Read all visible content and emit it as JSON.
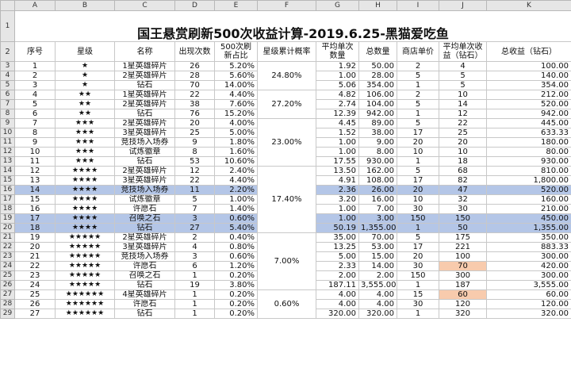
{
  "columns": [
    "A",
    "B",
    "C",
    "D",
    "E",
    "F",
    "G",
    "H",
    "I",
    "J",
    "K"
  ],
  "title": "国王悬赏刷新500次收益计算-2019.6.25-黑猫爱吃鱼",
  "headers": [
    "序号",
    "星级",
    "名称",
    "出现次数",
    "500次刷新占比",
    "星级累计概率",
    "平均单次数量",
    "总数量",
    "商店单价",
    "平均单次收益（钻石）",
    "总收益（钻石）"
  ],
  "rows": [
    {
      "rownum": "3",
      "seq": "1",
      "stars": "★",
      "name": "1星英雄碎片",
      "count": "26",
      "pct": "5.20%",
      "avg": "1.92",
      "total": "50.00",
      "price": "2",
      "avg_income": "4",
      "total_income": "100.00"
    },
    {
      "rownum": "4",
      "seq": "2",
      "stars": "★",
      "name": "2星英雄碎片",
      "count": "28",
      "pct": "5.60%",
      "avg": "1.00",
      "total": "28.00",
      "price": "5",
      "avg_income": "5",
      "total_income": "140.00"
    },
    {
      "rownum": "5",
      "seq": "3",
      "stars": "★",
      "name": "钻石",
      "count": "70",
      "pct": "14.00%",
      "avg": "5.06",
      "total": "354.00",
      "price": "1",
      "avg_income": "5",
      "total_income": "354.00"
    },
    {
      "rownum": "6",
      "seq": "4",
      "stars": "★★",
      "name": "1星英雄碎片",
      "count": "22",
      "pct": "4.40%",
      "avg": "4.82",
      "total": "106.00",
      "price": "2",
      "avg_income": "10",
      "total_income": "212.00"
    },
    {
      "rownum": "7",
      "seq": "5",
      "stars": "★★",
      "name": "2星英雄碎片",
      "count": "38",
      "pct": "7.60%",
      "avg": "2.74",
      "total": "104.00",
      "price": "5",
      "avg_income": "14",
      "total_income": "520.00"
    },
    {
      "rownum": "8",
      "seq": "6",
      "stars": "★★",
      "name": "钻石",
      "count": "76",
      "pct": "15.20%",
      "avg": "12.39",
      "total": "942.00",
      "price": "1",
      "avg_income": "12",
      "total_income": "942.00"
    },
    {
      "rownum": "9",
      "seq": "7",
      "stars": "★★★",
      "name": "2星英雄碎片",
      "count": "20",
      "pct": "4.00%",
      "avg": "4.45",
      "total": "89.00",
      "price": "5",
      "avg_income": "22",
      "total_income": "445.00"
    },
    {
      "rownum": "10",
      "seq": "8",
      "stars": "★★★",
      "name": "3星英雄碎片",
      "count": "25",
      "pct": "5.00%",
      "avg": "1.52",
      "total": "38.00",
      "price": "17",
      "avg_income": "25",
      "total_income": "633.33"
    },
    {
      "rownum": "11",
      "seq": "9",
      "stars": "★★★",
      "name": "竞技场入场券",
      "count": "9",
      "pct": "1.80%",
      "avg": "1.00",
      "total": "9.00",
      "price": "20",
      "avg_income": "20",
      "total_income": "180.00"
    },
    {
      "rownum": "12",
      "seq": "10",
      "stars": "★★★",
      "name": "试炼徽章",
      "count": "8",
      "pct": "1.60%",
      "avg": "1.00",
      "total": "8.00",
      "price": "10",
      "avg_income": "10",
      "total_income": "80.00"
    },
    {
      "rownum": "13",
      "seq": "11",
      "stars": "★★★",
      "name": "钻石",
      "count": "53",
      "pct": "10.60%",
      "avg": "17.55",
      "total": "930.00",
      "price": "1",
      "avg_income": "18",
      "total_income": "930.00"
    },
    {
      "rownum": "14",
      "seq": "12",
      "stars": "★★★★",
      "name": "2星英雄碎片",
      "count": "12",
      "pct": "2.40%",
      "avg": "13.50",
      "total": "162.00",
      "price": "5",
      "avg_income": "68",
      "total_income": "810.00"
    },
    {
      "rownum": "15",
      "seq": "13",
      "stars": "★★★★",
      "name": "3星英雄碎片",
      "count": "22",
      "pct": "4.40%",
      "avg": "4.91",
      "total": "108.00",
      "price": "17",
      "avg_income": "82",
      "total_income": "1,800.00"
    },
    {
      "rownum": "16",
      "seq": "14",
      "stars": "★★★★",
      "name": "竞技场入场券",
      "count": "11",
      "pct": "2.20%",
      "avg": "2.36",
      "total": "26.00",
      "price": "20",
      "avg_income": "47",
      "total_income": "520.00",
      "hl": true
    },
    {
      "rownum": "17",
      "seq": "15",
      "stars": "★★★★",
      "name": "试炼徽章",
      "count": "5",
      "pct": "1.00%",
      "avg": "3.20",
      "total": "16.00",
      "price": "10",
      "avg_income": "32",
      "total_income": "160.00"
    },
    {
      "rownum": "18",
      "seq": "16",
      "stars": "★★★★",
      "name": "许愿石",
      "count": "7",
      "pct": "1.40%",
      "avg": "1.00",
      "total": "7.00",
      "price": "30",
      "avg_income": "30",
      "total_income": "210.00"
    },
    {
      "rownum": "19",
      "seq": "17",
      "stars": "★★★★",
      "name": "召唤之石",
      "count": "3",
      "pct": "0.60%",
      "avg": "1.00",
      "total": "3.00",
      "price": "150",
      "avg_income": "150",
      "total_income": "450.00",
      "hl": true
    },
    {
      "rownum": "20",
      "seq": "18",
      "stars": "★★★★",
      "name": "钻石",
      "count": "27",
      "pct": "5.40%",
      "avg": "50.19",
      "total": "1,355.00",
      "price": "1",
      "avg_income": "50",
      "total_income": "1,355.00",
      "hl": true
    },
    {
      "rownum": "21",
      "seq": "19",
      "stars": "★★★★★",
      "name": "2星英雄碎片",
      "count": "2",
      "pct": "0.40%",
      "avg": "35.00",
      "total": "70.00",
      "price": "5",
      "avg_income": "175",
      "total_income": "350.00"
    },
    {
      "rownum": "22",
      "seq": "20",
      "stars": "★★★★★",
      "name": "3星英雄碎片",
      "count": "4",
      "pct": "0.80%",
      "avg": "13.25",
      "total": "53.00",
      "price": "17",
      "avg_income": "221",
      "total_income": "883.33"
    },
    {
      "rownum": "23",
      "seq": "21",
      "stars": "★★★★★",
      "name": "竞技场入场券",
      "count": "3",
      "pct": "0.60%",
      "avg": "5.00",
      "total": "15.00",
      "price": "20",
      "avg_income": "100",
      "total_income": "300.00"
    },
    {
      "rownum": "24",
      "seq": "22",
      "stars": "★★★★★",
      "name": "许愿石",
      "count": "6",
      "pct": "1.20%",
      "avg": "2.33",
      "total": "14.00",
      "price": "30",
      "avg_income": "70",
      "total_income": "420.00",
      "orange": true
    },
    {
      "rownum": "25",
      "seq": "23",
      "stars": "★★★★★",
      "name": "召唤之石",
      "count": "1",
      "pct": "0.20%",
      "avg": "2.00",
      "total": "2.00",
      "price": "150",
      "avg_income": "300",
      "total_income": "300.00"
    },
    {
      "rownum": "26",
      "seq": "24",
      "stars": "★★★★★",
      "name": "钻石",
      "count": "19",
      "pct": "3.80%",
      "avg": "187.11",
      "total": "3,555.00",
      "price": "1",
      "avg_income": "187",
      "total_income": "3,555.00"
    },
    {
      "rownum": "27",
      "seq": "25",
      "stars": "★★★★★★",
      "name": "4星英雄碎片",
      "count": "1",
      "pct": "0.20%",
      "avg": "4.00",
      "total": "4.00",
      "price": "15",
      "avg_income": "60",
      "total_income": "60.00",
      "orange": true
    },
    {
      "rownum": "28",
      "seq": "26",
      "stars": "★★★★★★",
      "name": "许愿石",
      "count": "1",
      "pct": "0.20%",
      "avg": "4.00",
      "total": "4.00",
      "price": "30",
      "avg_income": "120",
      "total_income": "120.00"
    },
    {
      "rownum": "29",
      "seq": "27",
      "stars": "★★★★★★",
      "name": "钻石",
      "count": "1",
      "pct": "0.20%",
      "avg": "320.00",
      "total": "320.00",
      "price": "1",
      "avg_income": "320",
      "total_income": "320.00"
    }
  ],
  "cumulative": [
    {
      "value": "24.80%",
      "start": 0,
      "span": 3
    },
    {
      "value": "27.20%",
      "start": 3,
      "span": 3
    },
    {
      "value": "23.00%",
      "start": 6,
      "span": 5
    },
    {
      "value": "17.40%",
      "start": 11,
      "span": 7
    },
    {
      "value": "7.00%",
      "start": 18,
      "span": 6
    },
    {
      "value": "0.60%",
      "start": 24,
      "span": 3
    }
  ]
}
